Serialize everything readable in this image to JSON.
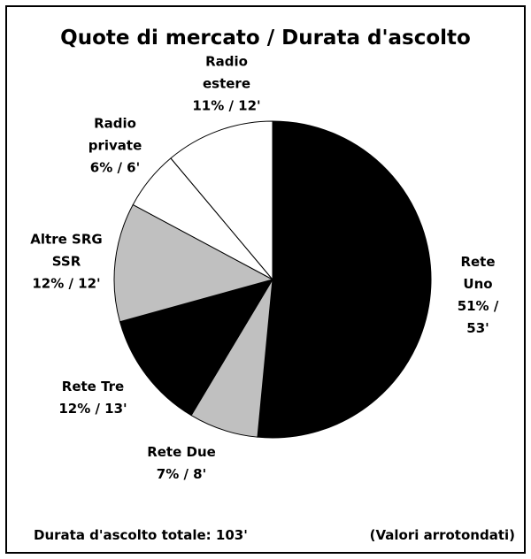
{
  "chart_data": {
    "type": "pie",
    "title": "Quote di mercato / Durata d'ascolto",
    "categories": [
      "Rete Uno",
      "Rete Due",
      "Rete Tre",
      "Altre SRG\nSSR",
      "Radio\nprivate",
      "Radio\nestere"
    ],
    "values": [
      51,
      7,
      12,
      12,
      6,
      11
    ],
    "value_labels": [
      "51% / 53'",
      "7% / 8'",
      "12% / 13'",
      "12% / 12'",
      "6% / 6'",
      "11% / 12'"
    ],
    "colors": [
      "#000000",
      "#c0c0c0",
      "#000000",
      "#c0c0c0",
      "#ffffff",
      "#ffffff"
    ],
    "footnote_left": "Durata d'ascolto totale: 103'",
    "footnote_right": "(Valori arrotondati)"
  }
}
